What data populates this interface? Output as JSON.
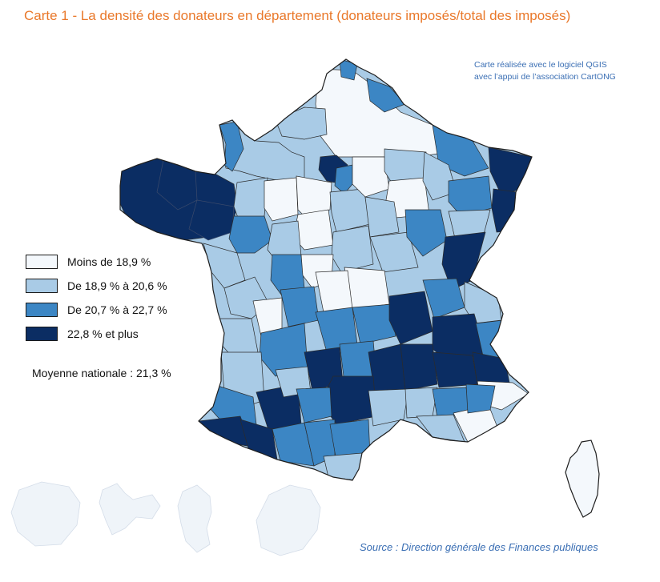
{
  "title": "Carte 1 - La densité des donateurs en département (donateurs imposés/total des imposés)",
  "credit": {
    "line1": "Carte réalisée avec le logiciel QGIS",
    "line2": "avec l’appui de l’association CartONG"
  },
  "legend": [
    {
      "label": "Moins de 18,9 %",
      "color": "#f4f8fc"
    },
    {
      "label": "De 18,9 % à 20,6 %",
      "color": "#a9cbe6"
    },
    {
      "label": "De 20,7 % à 22,7 %",
      "color": "#3c86c4"
    },
    {
      "label": "22,8 % et plus",
      "color": "#0b2d63"
    }
  ],
  "national_average": "Moyenne nationale : 21,3 %",
  "source": "Source : Direction générale des Finances publiques",
  "colors": {
    "title": "#e9782a",
    "note": "#3b6fb4",
    "border": "#2b2b2b",
    "overseas": "#eef3f9"
  }
}
